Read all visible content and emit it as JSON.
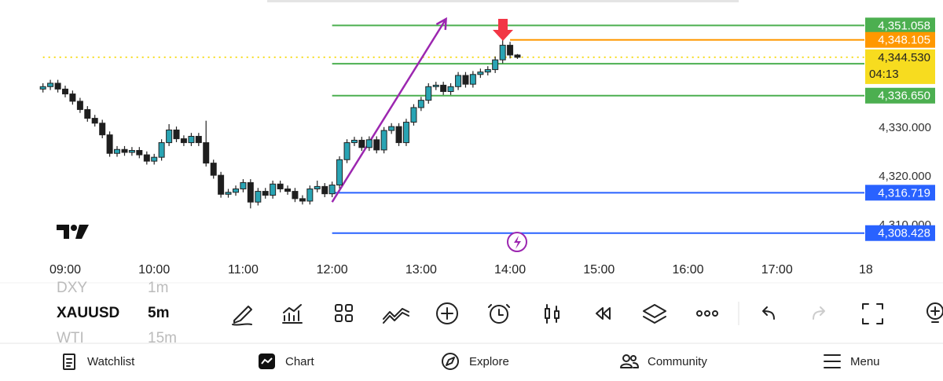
{
  "chart_data": {
    "type": "candlestick",
    "x": [
      8.75,
      8.833,
      8.917,
      9,
      9.083,
      9.167,
      9.25,
      9.333,
      9.417,
      9.5,
      9.583,
      9.667,
      9.75,
      9.833,
      9.917,
      10,
      10.083,
      10.167,
      10.25,
      10.333,
      10.417,
      10.5,
      10.583,
      10.667,
      10.75,
      10.833,
      10.917,
      11,
      11.083,
      11.167,
      11.25,
      11.333,
      11.417,
      11.5,
      11.583,
      11.667,
      11.75,
      11.833,
      11.917,
      12,
      12.083,
      12.167,
      12.25,
      12.333,
      12.417,
      12.5,
      12.583,
      12.667,
      12.75,
      12.833,
      12.917,
      13,
      13.083,
      13.167,
      13.25,
      13.333,
      13.417,
      13.5,
      13.583,
      13.667,
      13.75,
      13.833,
      13.917,
      14,
      14.083
    ],
    "open": [
      4338.0,
      4338.5,
      4339.2,
      4338.0,
      4337.0,
      4335.5,
      4333.8,
      4332.0,
      4331.0,
      4328.6,
      4324.8,
      4325.6,
      4325.0,
      4325.4,
      4324.5,
      4323.2,
      4324.0,
      4327.0,
      4329.6,
      4327.8,
      4327.0,
      4328.3,
      4327.0,
      4322.8,
      4320.3,
      4316.4,
      4316.8,
      4317.5,
      4318.8,
      4314.8,
      4317.0,
      4316.2,
      4318.5,
      4317.5,
      4317.0,
      4315.5,
      4315.0,
      4317.5,
      4318.0,
      4316.5,
      4318.3,
      4323.5,
      4327.0,
      4327.5,
      4326.0,
      4327.6,
      4325.5,
      4329.5,
      4330.3,
      4327.0,
      4331.2,
      4334.2,
      4335.7,
      4338.5,
      4338.8,
      4337.5,
      4338.5,
      4340.8,
      4339.0,
      4341.0,
      4341.5,
      4342.0,
      4344.0,
      4347.0,
      4345.0
    ],
    "high": [
      4339.2,
      4339.9,
      4339.9,
      4338.7,
      4337.7,
      4336.2,
      4334.5,
      4332.7,
      4331.7,
      4329.3,
      4326.3,
      4326.3,
      4326.1,
      4326.1,
      4325.2,
      4324.7,
      4327.7,
      4330.8,
      4330.3,
      4328.5,
      4329.0,
      4329.0,
      4331.5,
      4323.5,
      4321.0,
      4317.5,
      4318.2,
      4319.5,
      4319.5,
      4317.7,
      4317.7,
      4319.2,
      4319.2,
      4318.2,
      4317.7,
      4316.2,
      4318.2,
      4319.2,
      4318.7,
      4319.0,
      4324.2,
      4327.7,
      4328.2,
      4328.2,
      4328.3,
      4328.3,
      4330.2,
      4331.0,
      4331.0,
      4331.9,
      4334.9,
      4336.4,
      4339.2,
      4339.5,
      4339.5,
      4339.2,
      4341.5,
      4341.5,
      4341.7,
      4342.2,
      4342.7,
      4344.7,
      4348.1,
      4347.7,
      4345.2
    ],
    "low": [
      4337.3,
      4337.8,
      4337.3,
      4336.3,
      4334.8,
      4333.1,
      4331.3,
      4330.3,
      4327.9,
      4324.1,
      4324.1,
      4324.3,
      4324.3,
      4323.8,
      4322.5,
      4322.5,
      4323.3,
      4326.3,
      4327.1,
      4326.3,
      4326.3,
      4326.3,
      4322.1,
      4319.6,
      4315.7,
      4315.7,
      4316.1,
      4316.8,
      4313.5,
      4314.1,
      4315.5,
      4315.5,
      4316.8,
      4316.3,
      4314.8,
      4314.3,
      4314.3,
      4316.8,
      4315.8,
      4315.8,
      4317.6,
      4322.8,
      4326.3,
      4325.3,
      4325.3,
      4324.8,
      4324.8,
      4328.8,
      4326.3,
      4326.3,
      4330.5,
      4333.5,
      4335.0,
      4337.8,
      4336.8,
      4336.8,
      4337.8,
      4338.3,
      4338.3,
      4340.3,
      4340.8,
      4341.3,
      4343.3,
      4344.3,
      4344.2
    ],
    "close": [
      4338.5,
      4339.2,
      4338.0,
      4337.0,
      4335.5,
      4333.8,
      4332.0,
      4331.0,
      4328.6,
      4324.8,
      4325.6,
      4325.0,
      4325.4,
      4324.5,
      4323.2,
      4324.0,
      4327.0,
      4329.6,
      4327.8,
      4327.0,
      4328.3,
      4327.0,
      4322.8,
      4320.3,
      4316.4,
      4316.8,
      4317.5,
      4318.8,
      4314.8,
      4317.0,
      4316.2,
      4318.5,
      4317.5,
      4317.0,
      4315.5,
      4315.0,
      4317.5,
      4318.0,
      4316.5,
      4318.3,
      4323.5,
      4327.0,
      4327.5,
      4326.0,
      4327.6,
      4325.5,
      4329.5,
      4330.3,
      4327.0,
      4331.2,
      4334.2,
      4335.7,
      4338.5,
      4338.8,
      4337.5,
      4338.5,
      4340.8,
      4339.0,
      4341.0,
      4341.5,
      4342.0,
      4344.0,
      4347.0,
      4345.0,
      4344.53
    ],
    "up_color": "#29a4b4",
    "down_color": "#1e1e1e",
    "xlim": [
      8.267,
      18.027
    ],
    "xticks": [
      {
        "value": 9,
        "label": "09:00"
      },
      {
        "value": 10,
        "label": "10:00"
      },
      {
        "value": 11,
        "label": "11:00"
      },
      {
        "value": 12,
        "label": "12:00"
      },
      {
        "value": 13,
        "label": "13:00"
      },
      {
        "value": 14,
        "label": "14:00"
      },
      {
        "value": 15,
        "label": "15:00"
      },
      {
        "value": 16,
        "label": "16:00"
      },
      {
        "value": 17,
        "label": "17:00"
      },
      {
        "value": 18,
        "label": "18"
      }
    ],
    "ylim": [
      4303.06,
      4356.29
    ],
    "yticks": [
      {
        "value": 4330,
        "label": "4,330.000"
      },
      {
        "value": 4320,
        "label": "4,320.000"
      },
      {
        "value": 4310,
        "label": "4,310.000"
      }
    ],
    "levels": [
      {
        "value": 4351.058,
        "label": "4,351.058",
        "color": "#4caf50",
        "start": 12
      },
      {
        "value": 4348.105,
        "label": "4,348.105",
        "color": "#ff9800",
        "start": 14
      },
      {
        "value": 4343.2,
        "color": "#4caf50",
        "start": 12
      },
      {
        "value": 4344.53,
        "label": "4,344.530",
        "countdown": "04:13",
        "color": "#f7dc1f",
        "start": 8.75,
        "style": "dotted"
      },
      {
        "value": 4336.65,
        "label": "4,336.650",
        "color": "#4caf50",
        "start": 12
      },
      {
        "value": 4316.719,
        "label": "4,316.719",
        "color": "#2962ff",
        "start": 12
      },
      {
        "value": 4308.428,
        "label": "4,308.428",
        "color": "#2962ff",
        "start": 12
      }
    ],
    "trend_line": {
      "x": [
        12,
        13.28
      ],
      "y": [
        4314.8,
        4352.4
      ],
      "color": "#9c27b0"
    }
  },
  "symbols": [
    {
      "symbol": "DXY",
      "interval": "1m"
    },
    {
      "symbol": "XAUUSD",
      "interval": "5m"
    },
    {
      "symbol": "WTI",
      "interval": "15m"
    }
  ],
  "nav": [
    "Watchlist",
    "Chart",
    "Explore",
    "Community",
    "Menu"
  ]
}
